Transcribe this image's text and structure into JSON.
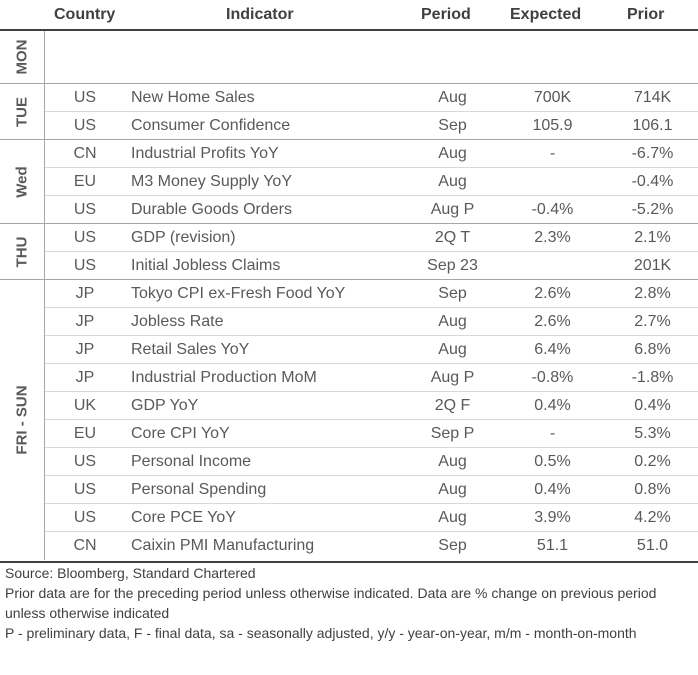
{
  "headers": {
    "country": "Country",
    "indicator": "Indicator",
    "period": "Period",
    "expected": "Expected",
    "prior": "Prior"
  },
  "days": [
    {
      "label": "MON",
      "rows": []
    },
    {
      "label": "TUE",
      "rows": [
        {
          "country": "US",
          "indicator": "New Home Sales",
          "period": "Aug",
          "expected": "700K",
          "prior": "714K"
        },
        {
          "country": "US",
          "indicator": "Consumer Confidence",
          "period": "Sep",
          "expected": "105.9",
          "prior": "106.1"
        }
      ]
    },
    {
      "label": "Wed",
      "rows": [
        {
          "country": "CN",
          "indicator": "Industrial Profits YoY",
          "period": "Aug",
          "expected": "-",
          "prior": "-6.7%"
        },
        {
          "country": "EU",
          "indicator": "M3 Money Supply YoY",
          "period": "Aug",
          "expected": "",
          "prior": "-0.4%"
        },
        {
          "country": "US",
          "indicator": "Durable Goods Orders",
          "period": "Aug P",
          "expected": "-0.4%",
          "prior": "-5.2%"
        }
      ]
    },
    {
      "label": "THU",
      "rows": [
        {
          "country": "US",
          "indicator": "GDP (revision)",
          "period": "2Q T",
          "expected": "2.3%",
          "prior": "2.1%"
        },
        {
          "country": "US",
          "indicator": "Initial Jobless Claims",
          "period": "Sep 23",
          "expected": "",
          "prior": "201K"
        }
      ]
    },
    {
      "label": "FRI - SUN",
      "rows": [
        {
          "country": "JP",
          "indicator": "Tokyo CPI ex-Fresh Food YoY",
          "period": "Sep",
          "expected": "2.6%",
          "prior": "2.8%"
        },
        {
          "country": "JP",
          "indicator": "Jobless Rate",
          "period": "Aug",
          "expected": "2.6%",
          "prior": "2.7%"
        },
        {
          "country": "JP",
          "indicator": "Retail Sales YoY",
          "period": "Aug",
          "expected": "6.4%",
          "prior": "6.8%"
        },
        {
          "country": "JP",
          "indicator": "Industrial Production MoM",
          "period": "Aug P",
          "expected": "-0.8%",
          "prior": "-1.8%"
        },
        {
          "country": "UK",
          "indicator": "GDP YoY",
          "period": "2Q F",
          "expected": "0.4%",
          "prior": "0.4%"
        },
        {
          "country": "EU",
          "indicator": "Core CPI YoY",
          "period": "Sep P",
          "expected": "-",
          "prior": "5.3%"
        },
        {
          "country": "US",
          "indicator": "Personal Income",
          "period": "Aug",
          "expected": "0.5%",
          "prior": "0.2%"
        },
        {
          "country": "US",
          "indicator": "Personal Spending",
          "period": "Aug",
          "expected": "0.4%",
          "prior": "0.8%"
        },
        {
          "country": "US",
          "indicator": "Core PCE YoY",
          "period": "Aug",
          "expected": "3.9%",
          "prior": "4.2%"
        },
        {
          "country": "CN",
          "indicator": "Caixin PMI Manufacturing",
          "period": "Sep",
          "expected": "51.1",
          "prior": "51.0"
        }
      ]
    }
  ],
  "notes": {
    "source": "Source: Bloomberg, Standard Chartered",
    "line1": "Prior data are for the preceding period unless otherwise indicated. Data are % change on previous period unless otherwise indicated",
    "line2": "P - preliminary data, F - final data, sa - seasonally adjusted, y/y - year-on-year, m/m - month-on-month"
  }
}
